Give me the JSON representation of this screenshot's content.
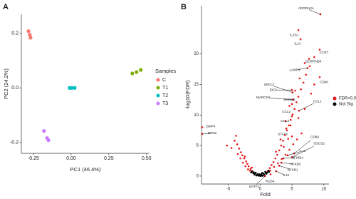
{
  "chart_data": [
    {
      "type": "scatter",
      "panel": "A",
      "xlabel": "PC1 (46.4%)",
      "ylabel": "PC2 (24.2%)",
      "xlim": [
        -0.33,
        0.52
      ],
      "ylim": [
        -0.24,
        0.27
      ],
      "xticks": [
        -0.25,
        {
          "value": 0,
          "label": "0.00"
        },
        0.25,
        {
          "value": 0.5,
          "label": "0.50"
        }
      ],
      "yticks": [
        -0.2,
        {
          "value": 0,
          "label": "0.0"
        },
        0.2
      ],
      "grid": false,
      "legend_title": "Samples",
      "series": [
        {
          "name": "C",
          "color": "#F8766D",
          "x": [
            -0.283,
            -0.274,
            -0.269
          ],
          "y": [
            0.208,
            0.195,
            0.184
          ]
        },
        {
          "name": "T1",
          "color": "#7CAE00",
          "x": [
            0.406,
            0.434,
            0.462
          ],
          "y": [
            0.053,
            0.058,
            0.066
          ]
        },
        {
          "name": "T2",
          "color": "#00BFC4",
          "x": [
            -0.01,
            0.005,
            0.024
          ],
          "y": [
            0,
            0,
            0
          ]
        },
        {
          "name": "T3",
          "color": "#C77CFF",
          "x": [
            -0.18,
            -0.16,
            -0.15
          ],
          "y": [
            -0.158,
            -0.184,
            -0.192
          ]
        }
      ]
    },
    {
      "type": "scatter",
      "panel": "B",
      "xlabel": "Fold",
      "ylabel": "-log10(FDR)",
      "xlim": [
        -9.2,
        10.8
      ],
      "ylim": [
        -1.3,
        27.9
      ],
      "xticks": [
        -5,
        0,
        5,
        10
      ],
      "yticks": [
        0,
        5,
        10,
        15,
        20
      ],
      "grid": false,
      "series": [
        {
          "name": "FDR<0.05",
          "color": "#E41A1C",
          "x": [
            -1.2,
            -1.5,
            -1.8,
            -2.0,
            -2.2,
            -2.5,
            -2.8,
            -3.0,
            -3.3,
            -3.6,
            -4.0,
            -1.6,
            -2.3,
            -2.7,
            -3.1,
            -3.5,
            -1.9,
            -4.5,
            -5.2,
            -2.4,
            -3.8,
            -1.3,
            1.2,
            1.5,
            1.8,
            2.1,
            2.4,
            2.7,
            3.0,
            3.3,
            3.6,
            3.9,
            4.2,
            4.5,
            4.8,
            5.1,
            5.4,
            5.7,
            6.0,
            6.4,
            6.8,
            7.2,
            7.8,
            8.5,
            1.6,
            2.2,
            2.8,
            3.4,
            4.0,
            4.6,
            5.2,
            5.8,
            6.5,
            2.5,
            3.2,
            4.0,
            4.6,
            5.5,
            6.2,
            7.0,
            5.0,
            6.0,
            7.0,
            8.0,
            8.5,
            3.7,
            4.4
          ],
          "y": [
            0.8,
            1.2,
            1.6,
            2.0,
            2.4,
            2.9,
            3.4,
            3.9,
            4.5,
            5.2,
            5.8,
            0.9,
            1.6,
            2.2,
            2.9,
            3.6,
            1.1,
            4.6,
            5.0,
            3.2,
            6.6,
            1.4,
            0.8,
            1.3,
            1.8,
            2.3,
            2.9,
            3.5,
            4.2,
            5.0,
            5.8,
            6.7,
            7.5,
            8.3,
            9.2,
            10.1,
            11.0,
            12.1,
            13.0,
            14.2,
            15.3,
            16.6,
            18.0,
            19.5,
            0.9,
            1.5,
            2.1,
            2.8,
            3.5,
            4.3,
            5.2,
            6.0,
            7.0,
            4.0,
            6.0,
            9.0,
            11.5,
            14.0,
            16.0,
            18.5,
            6.5,
            9.5,
            11.0,
            13.5,
            15.0,
            4.8,
            6.1
          ]
        },
        {
          "name": "Not Sig",
          "color": "#000000",
          "x": [
            -0.2,
            0.1,
            0.3,
            -0.5,
            0.6,
            -0.8,
            0.9,
            -1.0,
            1.0,
            -0.3,
            0.4,
            -0.6,
            0.7,
            -0.9,
            1.1,
            -1.1,
            0.2,
            -0.4,
            0.5,
            -0.7,
            0.8,
            1.3,
            -1.3,
            0,
            -0.1,
            1.4,
            -1.4,
            0.3
          ],
          "y": [
            0.05,
            0.02,
            0.1,
            0.2,
            0.3,
            0.4,
            0.5,
            0.6,
            0.4,
            0.15,
            0.05,
            0.1,
            0.15,
            0.25,
            0.6,
            0.5,
            0.25,
            0.35,
            0.45,
            0.55,
            0.7,
            0.9,
            0.8,
            0.1,
            0.3,
            0.7,
            0.6,
            0.5
          ]
        }
      ],
      "annotations": [
        {
          "text": "ADORA2A",
          "x": 9.46,
          "y": 26.5
        },
        {
          "text": "IL23A",
          "x": 6.0,
          "y": 23.9
        },
        {
          "text": "IL1A",
          "x": 6.34,
          "y": 22.4
        },
        {
          "text": "CCR7",
          "x": 9.35,
          "y": 20.7
        },
        {
          "text": "SERPINB4",
          "x": 7.68,
          "y": 19.2
        },
        {
          "text": "LAMP3",
          "x": 7.45,
          "y": 17.7
        },
        {
          "text": "CD80",
          "x": 9.35,
          "y": 16.2
        },
        {
          "text": "BIRC3",
          "x": 5.1,
          "y": 13.7
        },
        {
          "text": "IDO1",
          "x": 4.99,
          "y": 14.1
        },
        {
          "text": "MARCKS",
          "x": 5.2,
          "y": 12.5
        },
        {
          "text": "SOCS3",
          "x": 5.0,
          "y": 11.8
        },
        {
          "text": "CCL1",
          "x": 6.1,
          "y": 10.7
        },
        {
          "text": "CCL2",
          "x": 5.0,
          "y": 9.8
        },
        {
          "text": "CCL3",
          "x": 4.77,
          "y": 8.3
        },
        {
          "text": "STAT4",
          "x": 4.1,
          "y": 7.8
        },
        {
          "text": "CD86",
          "x": 5.33,
          "y": 3.7
        },
        {
          "text": "SOCS2",
          "x": 5.0,
          "y": 3.1
        },
        {
          "text": "IL13",
          "x": 4.32,
          "y": 3.4
        },
        {
          "text": "NFKBIA",
          "x": 3.65,
          "y": 2.9
        },
        {
          "text": "NFKB2",
          "x": 3.32,
          "y": 2.2
        },
        {
          "text": "NFKB1",
          "x": 2.98,
          "y": 1.7
        },
        {
          "text": "IL10",
          "x": 2.5,
          "y": 0.8
        },
        {
          "text": "RGS4",
          "x": 1.64,
          "y": 0.3
        },
        {
          "text": "BATF2",
          "x": 0.75,
          "y": 0
        },
        {
          "text": "BMP4",
          "x": -9.08,
          "y": 8.0
        },
        {
          "text": "BRD2",
          "x": -9.08,
          "y": 6.9
        }
      ]
    }
  ]
}
